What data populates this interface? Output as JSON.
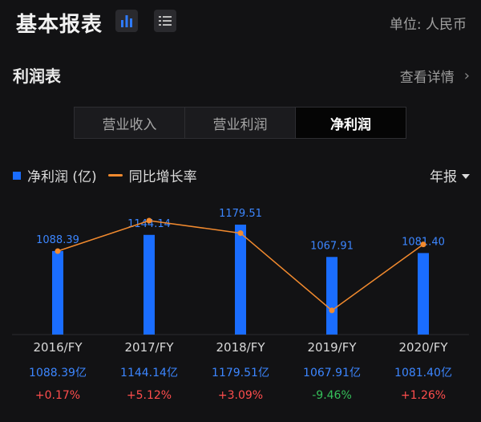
{
  "header": {
    "title": "基本报表",
    "unit_label": "单位: 人民币",
    "icons": [
      "bar-chart-icon",
      "list-icon"
    ]
  },
  "section": {
    "title": "利润表",
    "more_label": "查看详情"
  },
  "tabs": [
    {
      "label": "营业收入",
      "active": false
    },
    {
      "label": "营业利润",
      "active": false
    },
    {
      "label": "净利润",
      "active": true
    }
  ],
  "legend": {
    "bar_label": "净利润 (亿)",
    "line_label": "同比增长率"
  },
  "period_selector": "年报",
  "colors": {
    "bar": "#1a6dff",
    "line": "#f28a2e",
    "positive": "#ff4d4d",
    "negative": "#35c05a"
  },
  "chart_data": {
    "type": "bar",
    "categories": [
      "2016/FY",
      "2017/FY",
      "2018/FY",
      "2019/FY",
      "2020/FY"
    ],
    "series": [
      {
        "name": "净利润 (亿)",
        "type": "bar",
        "values": [
          1088.39,
          1144.14,
          1179.51,
          1067.91,
          1081.4
        ],
        "labels": [
          "1088.39",
          "1144.14",
          "1179.51",
          "1067.91",
          "1081.40"
        ]
      },
      {
        "name": "同比增长率",
        "type": "line",
        "values": [
          0.17,
          5.12,
          3.09,
          -9.46,
          1.26
        ]
      }
    ]
  },
  "rows": {
    "amounts": [
      "1088.39亿",
      "1144.14亿",
      "1179.51亿",
      "1067.91亿",
      "1081.40亿"
    ],
    "growth": [
      "+0.17%",
      "+5.12%",
      "+3.09%",
      "-9.46%",
      "+1.26%"
    ]
  }
}
